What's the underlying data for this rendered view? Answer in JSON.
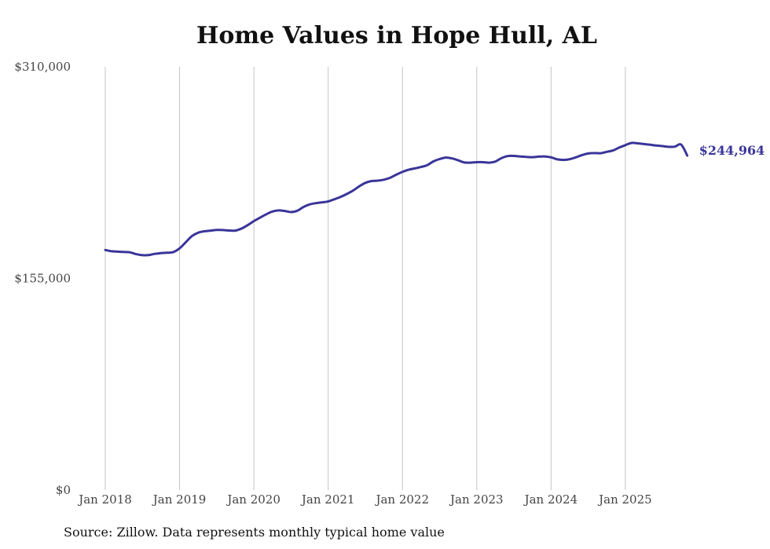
{
  "chart_data": {
    "type": "line",
    "title": "Home Values in Hope Hull, AL",
    "xlabel": "",
    "ylabel": "",
    "y_ticks": [
      0,
      155000,
      310000
    ],
    "y_tick_labels": [
      "$0",
      "$155,000",
      "$310,000"
    ],
    "ylim": [
      0,
      310000
    ],
    "x_tick_labels": [
      "Jan 2018",
      "Jan 2019",
      "Jan 2020",
      "Jan 2021",
      "Jan 2022",
      "Jan 2023",
      "Jan 2024",
      "Jan 2025"
    ],
    "grid": "vertical",
    "series": [
      {
        "name": "Typical home value",
        "color": "#3a3599",
        "start": "Jan 2018",
        "frequency": "monthly",
        "values": [
          175800,
          174900,
          174600,
          174400,
          174100,
          172800,
          172000,
          172100,
          173000,
          173500,
          173800,
          174300,
          177000,
          181500,
          186000,
          188500,
          189500,
          190000,
          190500,
          190400,
          190100,
          190000,
          191500,
          194000,
          197000,
          199500,
          202000,
          204000,
          204800,
          204400,
          203600,
          204500,
          207300,
          209200,
          210100,
          210700,
          211400,
          213000,
          214700,
          216800,
          219300,
          222400,
          225000,
          226300,
          226600,
          227300,
          228700,
          231000,
          233000,
          234600,
          235600,
          236600,
          238000,
          240700,
          242400,
          243500,
          242900,
          241500,
          239900,
          239800,
          240100,
          240100,
          239800,
          240600,
          243100,
          244600,
          244700,
          244300,
          244000,
          243800,
          244200,
          244300,
          243700,
          242200,
          241800,
          242300,
          243700,
          245300,
          246500,
          246800,
          246700,
          247700,
          248700,
          250800,
          252600,
          254200,
          253900,
          253400,
          252900,
          252300,
          251900,
          251400,
          251500,
          253000,
          244964
        ]
      }
    ],
    "last_value_label": "$244,964"
  },
  "source": "Source: Zillow. Data represents monthly typical home value"
}
